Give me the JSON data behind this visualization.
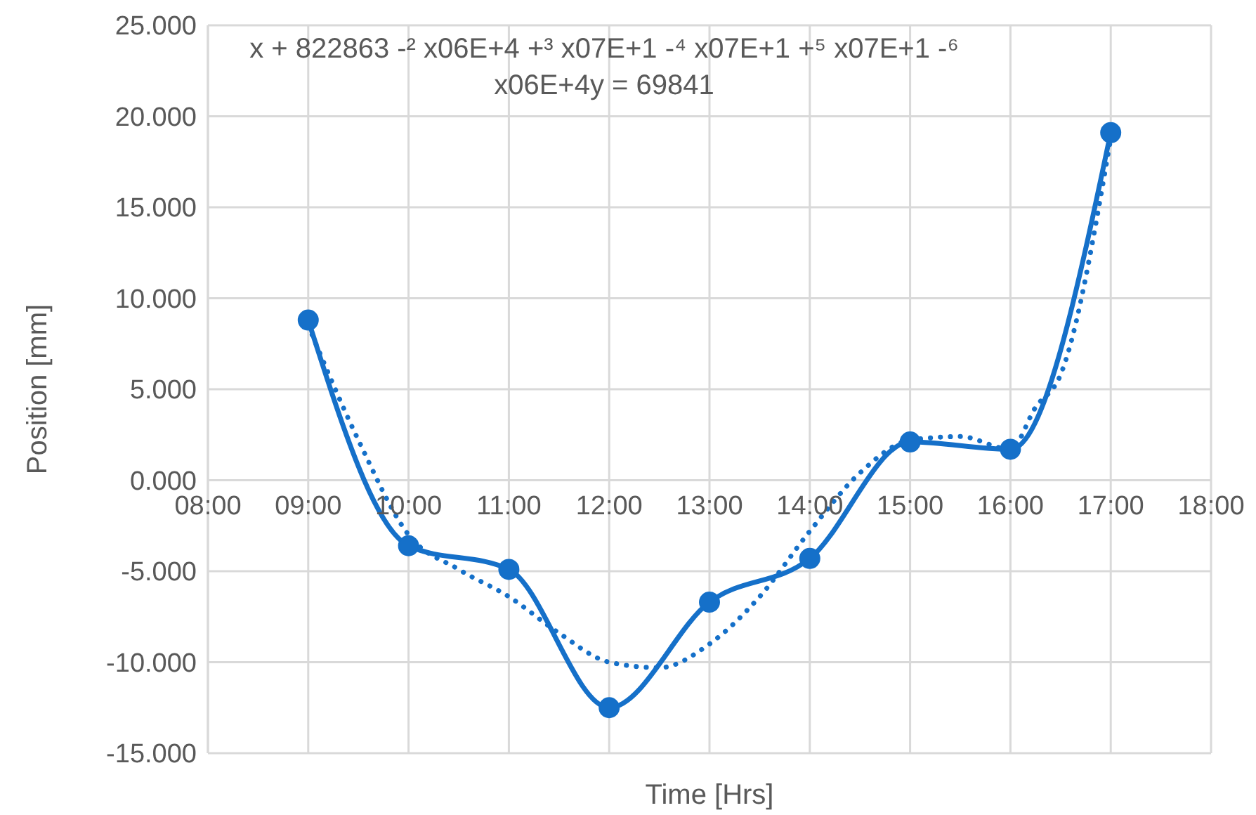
{
  "chart_data": {
    "type": "line",
    "title": "x + 822863 -² x06E+4 +³ x07E+1 -⁴ x07E+1 +⁵ x07E+1 -⁶ x06E+4y = 69841",
    "xlabel": "Time [Hrs]",
    "ylabel": "Position [mm]",
    "x": [
      9,
      10,
      11,
      12,
      13,
      14,
      15,
      16,
      17
    ],
    "series": [
      {
        "color": "#1570c9",
        "values": [
          8.8,
          -3.6,
          -4.9,
          -12.5,
          -6.7,
          -4.3,
          2.1,
          1.7,
          19.1
        ],
        "marker": "circle",
        "line_style": "solid"
      },
      {
        "type": "line",
        "color": "#1570c9",
        "x": [
          9,
          9.5,
          10,
          10.5,
          11,
          11.5,
          12,
          12.5,
          13,
          13.5,
          14,
          14.5,
          15,
          15.5,
          16,
          16.25,
          16.5,
          17
        ],
        "values": [
          8.5,
          2.2,
          -3.0,
          -4.9,
          -6.4,
          -8.4,
          -10.0,
          -10.3,
          -9.0,
          -6.4,
          -2.8,
          0.4,
          2.2,
          2.4,
          1.7,
          4.0,
          5.8,
          18.8
        ],
        "marker": "none",
        "line_style": "dotted"
      }
    ],
    "xlim": [
      8,
      18
    ],
    "xticks": [
      {
        "value": 8,
        "label": "08:00"
      },
      {
        "value": 9,
        "label": "09:00"
      },
      {
        "value": 10,
        "label": "10:00"
      },
      {
        "value": 11,
        "label": "11:00"
      },
      {
        "value": 12,
        "label": "12:00"
      },
      {
        "value": 13,
        "label": "13:00"
      },
      {
        "value": 14,
        "label": "14:00"
      },
      {
        "value": 15,
        "label": "15:00"
      },
      {
        "value": 16,
        "label": "16:00"
      },
      {
        "value": 17,
        "label": "17:00"
      },
      {
        "value": 18,
        "label": "18:00"
      }
    ],
    "ylim": [
      -15,
      25
    ],
    "yticks": [
      {
        "value": -15,
        "label": "-15.000"
      },
      {
        "value": -10,
        "label": "-10.000"
      },
      {
        "value": -5,
        "label": "-5.000"
      },
      {
        "value": 0,
        "label": "0.000"
      },
      {
        "value": 5,
        "label": "5.000"
      },
      {
        "value": 10,
        "label": "10.000"
      },
      {
        "value": 15,
        "label": "15.000"
      },
      {
        "value": 20,
        "label": "20.000"
      },
      {
        "value": 25,
        "label": "25.000"
      }
    ],
    "grid": true,
    "legend": false
  }
}
